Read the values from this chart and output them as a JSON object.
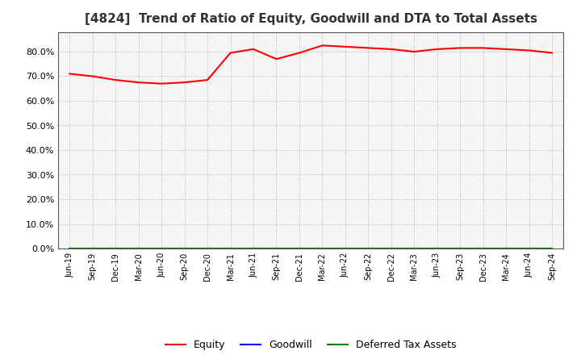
{
  "title": "[4824]  Trend of Ratio of Equity, Goodwill and DTA to Total Assets",
  "x_labels": [
    "Jun-19",
    "Sep-19",
    "Dec-19",
    "Mar-20",
    "Jun-20",
    "Sep-20",
    "Dec-20",
    "Mar-21",
    "Jun-21",
    "Sep-21",
    "Dec-21",
    "Mar-22",
    "Jun-22",
    "Sep-22",
    "Dec-22",
    "Mar-23",
    "Jun-23",
    "Sep-23",
    "Dec-23",
    "Mar-24",
    "Jun-24",
    "Sep-24"
  ],
  "equity": [
    71.0,
    70.0,
    68.5,
    67.5,
    67.0,
    67.5,
    68.5,
    79.5,
    81.0,
    77.0,
    79.5,
    82.5,
    82.0,
    81.5,
    81.0,
    80.0,
    81.0,
    81.5,
    81.5,
    81.0,
    80.5,
    79.5
  ],
  "goodwill": [
    0.0,
    0.0,
    0.0,
    0.0,
    0.0,
    0.0,
    0.0,
    0.0,
    0.0,
    0.0,
    0.0,
    0.0,
    0.0,
    0.0,
    0.0,
    0.0,
    0.0,
    0.0,
    0.0,
    0.0,
    0.0,
    0.0
  ],
  "dta": [
    0.0,
    0.0,
    0.0,
    0.0,
    0.0,
    0.0,
    0.0,
    0.0,
    0.0,
    0.0,
    0.0,
    0.0,
    0.0,
    0.0,
    0.0,
    0.0,
    0.0,
    0.0,
    0.0,
    0.0,
    0.0,
    0.0
  ],
  "equity_color": "#FF0000",
  "goodwill_color": "#0000FF",
  "dta_color": "#008000",
  "ylim": [
    0,
    88
  ],
  "yticks": [
    0,
    10,
    20,
    30,
    40,
    50,
    60,
    70,
    80
  ],
  "background_color": "#FFFFFF",
  "plot_bg_color": "#F5F5F5",
  "grid_color": "#AAAAAA",
  "title_fontsize": 11,
  "legend_labels": [
    "Equity",
    "Goodwill",
    "Deferred Tax Assets"
  ]
}
